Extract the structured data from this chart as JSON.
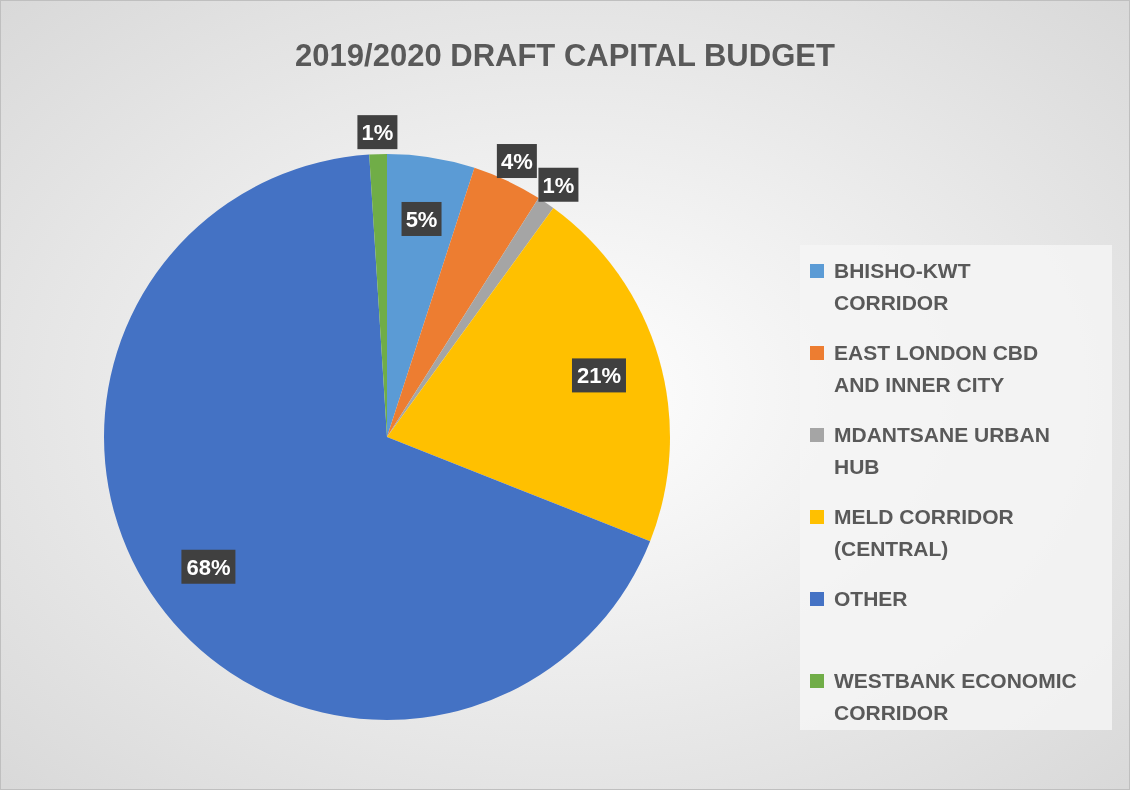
{
  "chart_data": {
    "type": "pie",
    "title": "2019/2020 DRAFT CAPITAL BUDGET",
    "categories": [
      "BHISHO-KWT CORRIDOR",
      "EAST LONDON CBD AND INNER CITY",
      "MDANTSANE URBAN HUB",
      "MELD CORRIDOR (CENTRAL)",
      "OTHER",
      "WESTBANK ECONOMIC CORRIDOR"
    ],
    "values": [
      5,
      4,
      1,
      21,
      68,
      1
    ],
    "colors": [
      "#5b9bd5",
      "#ed7d31",
      "#a5a5a5",
      "#ffc000",
      "#4472c4",
      "#70ad47"
    ],
    "value_labels": [
      "5%",
      "4%",
      "1%",
      "21%",
      "68%",
      "1%"
    ],
    "legend": "right"
  }
}
